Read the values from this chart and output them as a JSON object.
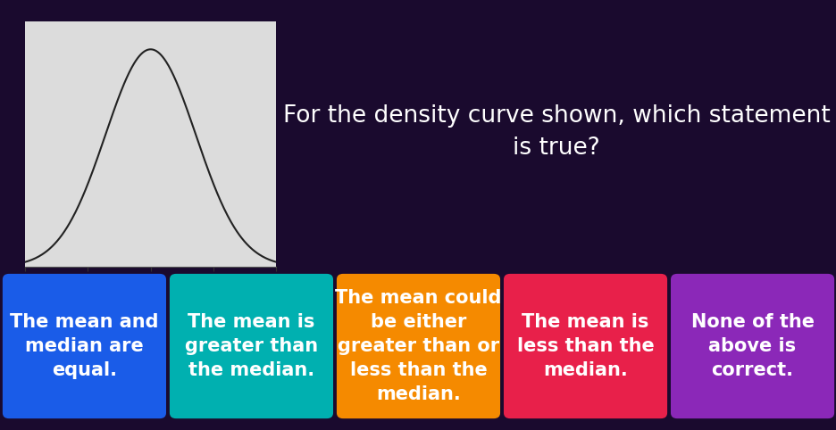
{
  "background_color": "#1a0a2e",
  "question_text": "For the density curve shown, which statement\nis true?",
  "question_color": "#ffffff",
  "question_fontsize": 19,
  "cards": [
    {
      "text": "The mean and\nmedian are\nequal.",
      "color": "#1a5ce8",
      "text_color": "#ffffff"
    },
    {
      "text": "The mean is\ngreater than\nthe median.",
      "color": "#00b0b0",
      "text_color": "#ffffff"
    },
    {
      "text": "The mean could\nbe either\ngreater than or\nless than the\nmedian.",
      "color": "#f58a00",
      "text_color": "#ffffff"
    },
    {
      "text": "The mean is\nless than the\nmedian.",
      "color": "#e8204a",
      "text_color": "#ffffff"
    },
    {
      "text": "None of the\nabove is\ncorrect.",
      "color": "#8b28b8",
      "text_color": "#ffffff"
    }
  ],
  "card_fontsize": 15,
  "plot_bg": "#dcdcdc",
  "plot_line_color": "#222222",
  "plot_xticks": [
    0.0,
    0.25,
    0.5,
    0.75,
    1.0
  ],
  "plot_xlim": [
    0.0,
    1.0
  ],
  "plot_ylim": [
    0,
    2.5
  ],
  "curve_mu": 0.5,
  "curve_sigma": 0.18
}
